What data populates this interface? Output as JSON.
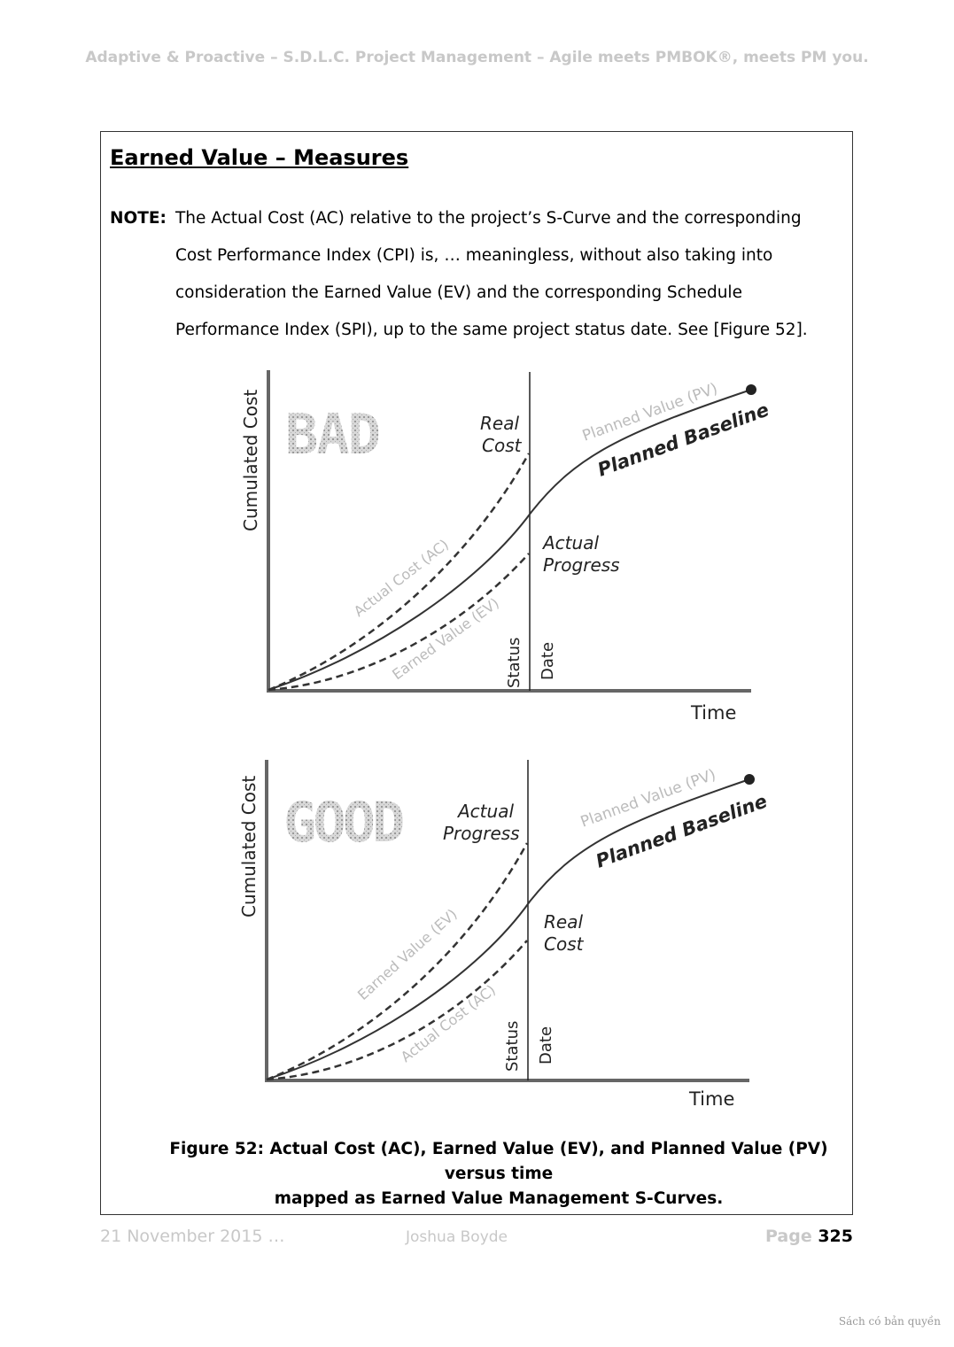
{
  "header": {
    "running_title": "Adaptive & Proactive – S.D.L.C. Project Management – Agile meets PMBOK®, meets PM you."
  },
  "section": {
    "title": "Earned Value – Measures",
    "note_label": "NOTE:",
    "note_lines": [
      "The Actual Cost (AC) relative to the project’s S-Curve and the corresponding",
      "Cost Performance Index (CPI) is, … meaningless, without also taking into",
      "consideration the Earned Value (EV) and the corresponding Schedule",
      "Performance Index (SPI),  up to the same project status date.  See [Figure 52]."
    ]
  },
  "figure": {
    "panels": [
      {
        "stamp": "BAD",
        "y_axis_label": "Cumulated Cost",
        "x_axis_label": "Time",
        "upper_annotation": [
          "Real",
          "Cost"
        ],
        "lower_annotation": [
          "Actual",
          "Progress"
        ],
        "planned_value_label": "Planned Value (PV)",
        "planned_baseline_label": "Planned Baseline",
        "upper_dashed_label": "Actual Cost (AC)",
        "lower_dashed_label": "Earned Value (EV)",
        "status_label": "Status",
        "date_label": "Date"
      },
      {
        "stamp": "GOOD",
        "y_axis_label": "Cumulated Cost",
        "x_axis_label": "Time",
        "upper_annotation": [
          "Actual",
          "Progress"
        ],
        "lower_annotation": [
          "Real",
          "Cost"
        ],
        "planned_value_label": "Planned Value (PV)",
        "planned_baseline_label": "Planned Baseline",
        "upper_dashed_label": "Earned Value (EV)",
        "lower_dashed_label": "Actual Cost (AC)",
        "status_label": "Status",
        "date_label": "Date"
      }
    ],
    "caption_lines": [
      "Figure 52: Actual Cost (AC), Earned Value (EV), and Planned Value (PV) versus time",
      "mapped as Earned Value Management S-Curves."
    ]
  },
  "footer": {
    "date": "21 November 2015 …",
    "author": "Joshua Boyde",
    "page_label": "Page ",
    "page_number": "325"
  },
  "watermark": "Sách có bản quyền",
  "colors": {
    "faded_text": "#c8c8c8",
    "curve_dark": "#333333",
    "curve_gray": "#bbbbbb"
  }
}
